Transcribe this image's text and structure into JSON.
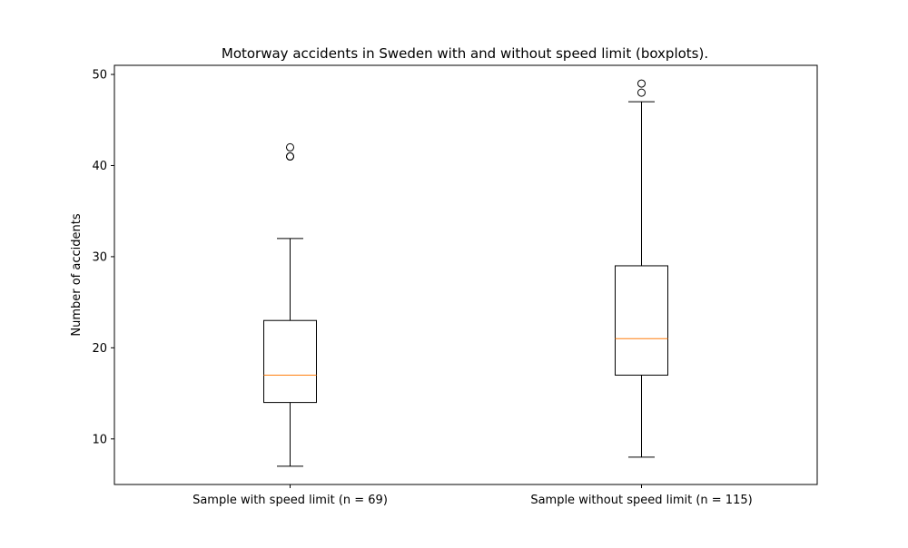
{
  "chart_data": {
    "type": "boxplot",
    "title": "Motorway accidents in Sweden with and without speed limit (boxplots).",
    "xlabel": "",
    "ylabel": "Number of accidents",
    "ylim": [
      5,
      51
    ],
    "yticks": [
      10,
      20,
      30,
      40,
      50
    ],
    "grid": false,
    "legend": "none",
    "colors": {
      "box": "#000000",
      "median": "#ff7f0e",
      "outlier": "#000000",
      "frame": "#000000",
      "background": "#ffffff"
    },
    "categories": [
      "Sample with speed limit (n = 69)",
      "Sample without speed limit (n = 115)"
    ],
    "boxes": [
      {
        "label": "Sample with speed limit (n = 69)",
        "whisker_low": 7,
        "q1": 14,
        "median": 17,
        "q3": 23,
        "whisker_high": 32,
        "outliers": [
          41,
          41,
          42
        ]
      },
      {
        "label": "Sample without speed limit (n = 115)",
        "whisker_low": 8,
        "q1": 17,
        "median": 21,
        "q3": 29,
        "whisker_high": 47,
        "outliers": [
          48,
          49
        ]
      }
    ]
  }
}
